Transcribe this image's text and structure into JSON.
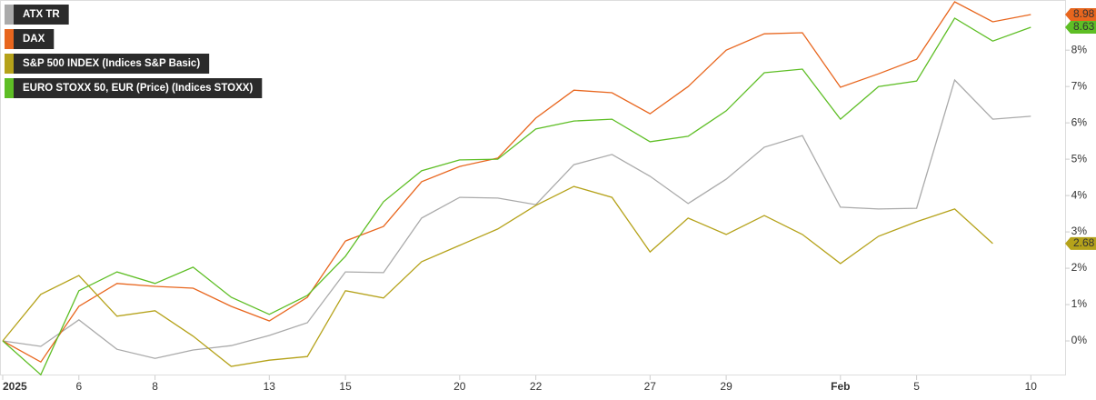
{
  "chart_data": {
    "type": "line",
    "categories": [
      "2025",
      null,
      "6",
      null,
      "8",
      null,
      null,
      "13",
      null,
      "15",
      null,
      null,
      "20",
      null,
      "22",
      null,
      null,
      "27",
      null,
      "29",
      null,
      null,
      "Feb",
      null,
      "5",
      null,
      null,
      "10"
    ],
    "series": [
      {
        "name": "ATX TR",
        "color": "#aaaaaa",
        "values": [
          0,
          -0.15,
          0.58,
          -0.23,
          -0.48,
          -0.25,
          -0.13,
          0.15,
          0.5,
          1.9,
          1.88,
          3.38,
          3.95,
          3.93,
          3.75,
          4.85,
          5.13,
          4.53,
          3.78,
          4.45,
          5.33,
          5.65,
          3.68,
          3.63,
          3.65,
          7.18,
          6.1,
          6.18
        ]
      },
      {
        "name": "DAX",
        "color": "#e8661e",
        "values": [
          0,
          -0.58,
          0.95,
          1.58,
          1.5,
          1.45,
          0.95,
          0.55,
          1.2,
          2.75,
          3.15,
          4.38,
          4.8,
          5.03,
          6.13,
          6.9,
          6.83,
          6.25,
          7.0,
          8.0,
          8.45,
          8.48,
          6.98,
          7.35,
          7.75,
          9.33,
          8.78,
          8.98
        ],
        "value_labels": [
          null,
          null,
          null,
          null,
          null,
          null,
          null,
          null,
          null,
          null,
          null,
          null,
          null,
          null,
          null,
          null,
          null,
          null,
          null,
          null,
          null,
          null,
          null,
          null,
          null,
          null,
          null,
          "8.98"
        ]
      },
      {
        "name": "S&P 500 INDEX (Indices S&P Basic)",
        "color": "#b5a21a",
        "values": [
          0,
          1.28,
          1.8,
          0.68,
          0.83,
          0.13,
          -0.7,
          -0.53,
          -0.43,
          1.38,
          1.18,
          2.18,
          2.63,
          3.08,
          3.73,
          4.25,
          3.95,
          2.45,
          3.38,
          2.93,
          3.45,
          2.93,
          2.13,
          2.88,
          3.28,
          3.63,
          2.68,
          null
        ],
        "value_labels": [
          null,
          null,
          null,
          null,
          null,
          null,
          null,
          null,
          null,
          null,
          null,
          null,
          null,
          null,
          null,
          null,
          null,
          null,
          null,
          null,
          null,
          null,
          null,
          null,
          null,
          null,
          "2.68",
          null
        ]
      },
      {
        "name": "EURO STOXX 50, EUR (Price) (Indices STOXX)",
        "color": "#5ebe25",
        "values": [
          0,
          -0.93,
          1.38,
          1.9,
          1.58,
          2.03,
          1.2,
          0.73,
          1.25,
          2.33,
          3.83,
          4.68,
          4.98,
          5.0,
          5.83,
          6.05,
          6.1,
          5.48,
          5.63,
          6.33,
          7.38,
          7.48,
          6.1,
          7.0,
          7.15,
          8.88,
          8.25,
          8.63
        ],
        "value_labels": [
          null,
          null,
          null,
          null,
          null,
          null,
          null,
          null,
          null,
          null,
          null,
          null,
          null,
          null,
          null,
          null,
          null,
          null,
          null,
          null,
          null,
          null,
          null,
          null,
          null,
          null,
          null,
          "8.63"
        ]
      }
    ],
    "ylim": [
      -0.95,
      9.38
    ],
    "yticks": [
      {
        "value": 0,
        "label": "0%"
      },
      {
        "value": 1,
        "label": "1%"
      },
      {
        "value": 2,
        "label": "2%"
      },
      {
        "value": 3,
        "label": "3%"
      },
      {
        "value": 4,
        "label": "4%"
      },
      {
        "value": 5,
        "label": "5%"
      },
      {
        "value": 6,
        "label": "6%"
      },
      {
        "value": 7,
        "label": "7%"
      },
      {
        "value": 8,
        "label": "8%"
      }
    ]
  }
}
